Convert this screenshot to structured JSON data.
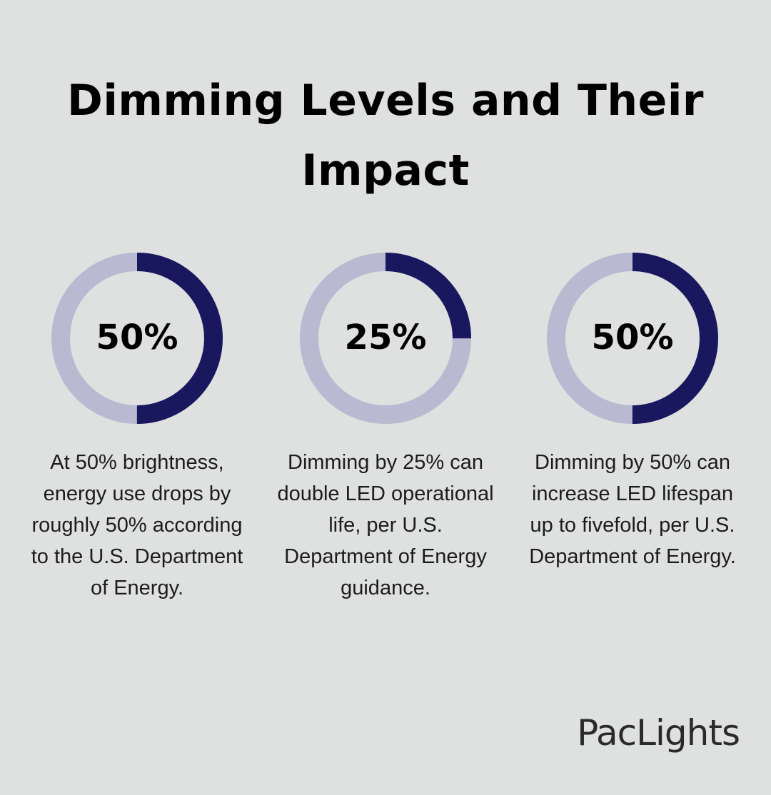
{
  "title": "Dimming Levels and Their Impact",
  "brand": "PacLights",
  "chart_data": [
    {
      "type": "donut",
      "values": [
        50
      ],
      "value_labels": [
        "50%"
      ],
      "ylim": [
        0,
        100
      ],
      "color": "#19175e",
      "track_color": "#b9bad1",
      "caption": "At 50% brightness, energy use drops by roughly 50% according to the U.S. Department of Energy."
    },
    {
      "type": "donut",
      "values": [
        25
      ],
      "value_labels": [
        "25%"
      ],
      "ylim": [
        0,
        100
      ],
      "color": "#19175e",
      "track_color": "#b9bad1",
      "caption": "Dimming by 25% can double LED operational life, per U.S. Department of Energy guidance."
    },
    {
      "type": "donut",
      "values": [
        50
      ],
      "value_labels": [
        "50%"
      ],
      "ylim": [
        0,
        100
      ],
      "color": "#19175e",
      "track_color": "#b9bad1",
      "caption": "Dimming by 50% can increase LED lifespan up to fivefold, per U.S. Department of Energy."
    }
  ]
}
